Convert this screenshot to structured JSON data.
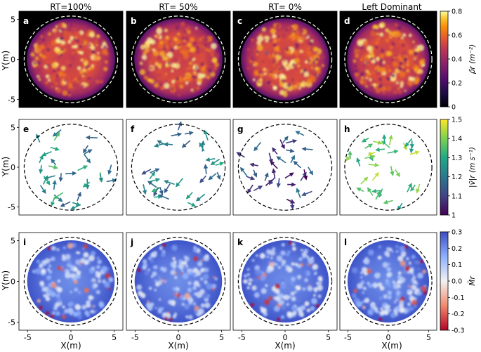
{
  "figure": {
    "column_titles": [
      "RT=100%",
      "RT= 50%",
      "RT= 0%",
      "Left Dominant"
    ],
    "xlabel": "X(m)",
    "ylabel": "Y(m)"
  },
  "colors": {
    "density_low": "#000004",
    "density_mid": "#b5367a",
    "density_high": "#fcffa4",
    "speed_low": "#440154",
    "speed_mid": "#21918c",
    "speed_high": "#fde725",
    "swirl_positive": "#3b4cc0",
    "swirl_zero": "#f2f2f2",
    "swirl_negative": "#b40426"
  },
  "chart_data": [
    {
      "type": "heatmap",
      "row": "density",
      "panel_labels": [
        "a",
        "b",
        "c",
        "d"
      ],
      "colorbar_label": "ρ̄r (m⁻²)",
      "colorbar_ticks": [
        "0",
        "0.2",
        "0.4",
        "0.6",
        "0.8"
      ],
      "value_range": [
        0,
        0.8
      ],
      "xlim": [
        -6,
        6
      ],
      "ylim": [
        -6,
        6
      ],
      "x_ticks": [
        "-5",
        "0",
        "5"
      ],
      "y_ticks": [
        "5",
        "0",
        "-5"
      ],
      "disk_radius": 5.1,
      "boundary_radius": 5.4,
      "boundary_style": "white dashed circle",
      "background": "black"
    },
    {
      "type": "scatter",
      "subtype": "quiver",
      "row": "velocity",
      "panel_labels": [
        "e",
        "f",
        "g",
        "h"
      ],
      "colorbar_label": "|v̄|r (m s⁻¹)",
      "colorbar_ticks": [
        "1",
        "1.1",
        "1.2",
        "1.3",
        "1.4",
        "1.5"
      ],
      "value_range": [
        1,
        1.5
      ],
      "xlim": [
        -6,
        6
      ],
      "ylim": [
        -6,
        6
      ],
      "y_ticks": [
        "5",
        "0",
        "-5"
      ],
      "boundary_radius": 5.4,
      "boundary_style": "black dashed circle",
      "panel_speed_bias": [
        1.25,
        1.22,
        1.1,
        1.35
      ]
    },
    {
      "type": "heatmap",
      "row": "swirl",
      "panel_labels": [
        "i",
        "j",
        "k",
        "l"
      ],
      "colorbar_label": "M̄r",
      "colorbar_ticks": [
        "0.3",
        "0.2",
        "0.1",
        "0.0",
        "-0.1",
        "-0.2",
        "-0.3"
      ],
      "value_range": [
        -0.3,
        0.3
      ],
      "xlim": [
        -6,
        6
      ],
      "ylim": [
        -6,
        6
      ],
      "x_ticks": [
        "-5",
        "0",
        "5"
      ],
      "y_ticks": [
        "5",
        "0",
        "-5"
      ],
      "boundary_radius": 5.4,
      "boundary_style": "black dashed circle"
    }
  ]
}
